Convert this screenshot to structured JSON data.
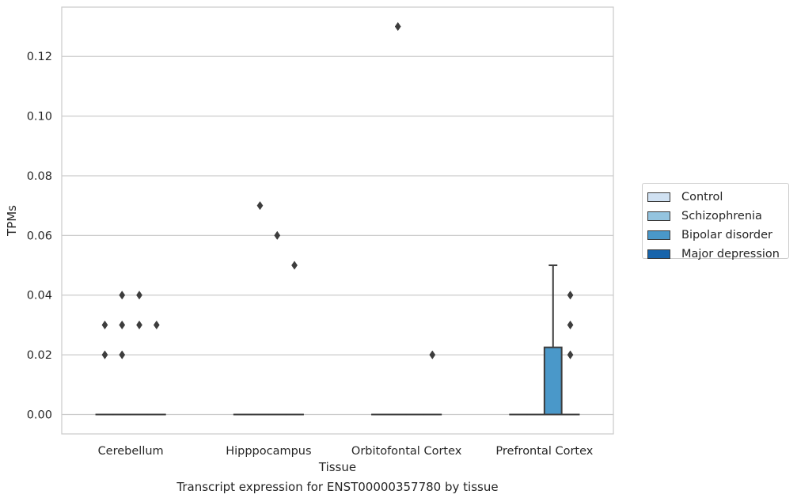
{
  "chart_data": {
    "type": "boxplot",
    "caption": "Transcript expression for ENST00000357780 by tissue",
    "xlabel": "Tissue",
    "ylabel": "TPMs",
    "ylim": [
      -0.0065,
      0.1365
    ],
    "yticks": [
      "0.00",
      "0.02",
      "0.04",
      "0.06",
      "0.08",
      "0.10",
      "0.12"
    ],
    "grid": true,
    "legend_position": "right",
    "categories": [
      "Cerebellum",
      "Hipppocampus",
      "Orbitofontal Cortex",
      "Prefrontal Cortex"
    ],
    "series": [
      {
        "name": "Control",
        "color": "#d0e1f2"
      },
      {
        "name": "Schizophrenia",
        "color": "#94c4df"
      },
      {
        "name": "Bipolar disorder",
        "color": "#4a98c9"
      },
      {
        "name": "Major depression",
        "color": "#1764ab"
      }
    ],
    "boxes": [
      {
        "category": "Cerebellum",
        "series": "Control",
        "q1": 0,
        "median": 0,
        "q3": 0,
        "whisker_low": 0,
        "whisker_high": 0,
        "outliers": [
          0.02,
          0.03
        ]
      },
      {
        "category": "Cerebellum",
        "series": "Schizophrenia",
        "q1": 0,
        "median": 0,
        "q3": 0,
        "whisker_low": 0,
        "whisker_high": 0,
        "outliers": [
          0.02,
          0.03,
          0.04
        ]
      },
      {
        "category": "Cerebellum",
        "series": "Bipolar disorder",
        "q1": 0,
        "median": 0,
        "q3": 0,
        "whisker_low": 0,
        "whisker_high": 0,
        "outliers": [
          0.03,
          0.04
        ]
      },
      {
        "category": "Cerebellum",
        "series": "Major depression",
        "q1": 0,
        "median": 0,
        "q3": 0,
        "whisker_low": 0,
        "whisker_high": 0,
        "outliers": [
          0.03
        ]
      },
      {
        "category": "Hipppocampus",
        "series": "Control",
        "q1": 0,
        "median": 0,
        "q3": 0,
        "whisker_low": 0,
        "whisker_high": 0,
        "outliers": []
      },
      {
        "category": "Hipppocampus",
        "series": "Schizophrenia",
        "q1": 0,
        "median": 0,
        "q3": 0,
        "whisker_low": 0,
        "whisker_high": 0,
        "outliers": [
          0.07
        ]
      },
      {
        "category": "Hipppocampus",
        "series": "Bipolar disorder",
        "q1": 0,
        "median": 0,
        "q3": 0,
        "whisker_low": 0,
        "whisker_high": 0,
        "outliers": [
          0.06
        ]
      },
      {
        "category": "Hipppocampus",
        "series": "Major depression",
        "q1": 0,
        "median": 0,
        "q3": 0,
        "whisker_low": 0,
        "whisker_high": 0,
        "outliers": [
          0.05
        ]
      },
      {
        "category": "Orbitofontal Cortex",
        "series": "Control",
        "q1": 0,
        "median": 0,
        "q3": 0,
        "whisker_low": 0,
        "whisker_high": 0,
        "outliers": []
      },
      {
        "category": "Orbitofontal Cortex",
        "series": "Schizophrenia",
        "q1": 0,
        "median": 0,
        "q3": 0,
        "whisker_low": 0,
        "whisker_high": 0,
        "outliers": [
          0.13
        ]
      },
      {
        "category": "Orbitofontal Cortex",
        "series": "Bipolar disorder",
        "q1": 0,
        "median": 0,
        "q3": 0,
        "whisker_low": 0,
        "whisker_high": 0,
        "outliers": []
      },
      {
        "category": "Orbitofontal Cortex",
        "series": "Major depression",
        "q1": 0,
        "median": 0,
        "q3": 0,
        "whisker_low": 0,
        "whisker_high": 0,
        "outliers": [
          0.02
        ]
      },
      {
        "category": "Prefrontal Cortex",
        "series": "Control",
        "q1": 0,
        "median": 0,
        "q3": 0,
        "whisker_low": 0,
        "whisker_high": 0,
        "outliers": []
      },
      {
        "category": "Prefrontal Cortex",
        "series": "Schizophrenia",
        "q1": 0,
        "median": 0,
        "q3": 0,
        "whisker_low": 0,
        "whisker_high": 0,
        "outliers": []
      },
      {
        "category": "Prefrontal Cortex",
        "series": "Bipolar disorder",
        "q1": 0,
        "median": 0,
        "q3": 0.0225,
        "whisker_low": 0,
        "whisker_high": 0.05,
        "outliers": []
      },
      {
        "category": "Prefrontal Cortex",
        "series": "Major depression",
        "q1": 0,
        "median": 0,
        "q3": 0,
        "whisker_low": 0,
        "whisker_high": 0,
        "outliers": [
          0.02,
          0.03,
          0.04
        ]
      }
    ]
  }
}
